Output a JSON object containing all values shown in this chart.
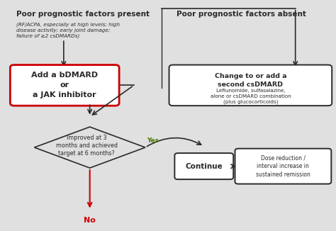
{
  "bg_color": "#e0e0e0",
  "title_left": "Poor prognostic factors present",
  "title_right": "Poor prognostic factors absent",
  "italic_text": "(RF/ACPA, especially at high levels; high\ndisease activity; early joint damage;\nfailure of ≥2 csDMARDs)",
  "box_bdmard": "Add a bDMARD\nor\na JAK inhibitor",
  "box_csdmard_bold": "Change to or add a\nsecond csDMARD",
  "box_csdmard_normal": "Leflunomide, sulfasalazine,\nalone or csDMARD combination\n(plus glucocorticoids)",
  "diamond_text": "Improved at 3\nmonths and achieved\ntarget at 6 months?",
  "box_continue": "Continue",
  "box_dose": "Dose reduction /\ninterval increase in\nsustained remission",
  "yes_label": "Yes",
  "no_label": "No",
  "color_red": "#cc0000",
  "color_green": "#4a7a00",
  "color_dark": "#2a2a2a",
  "color_white": "#ffffff",
  "figw": 4.74,
  "figh": 3.26,
  "dpi": 100
}
